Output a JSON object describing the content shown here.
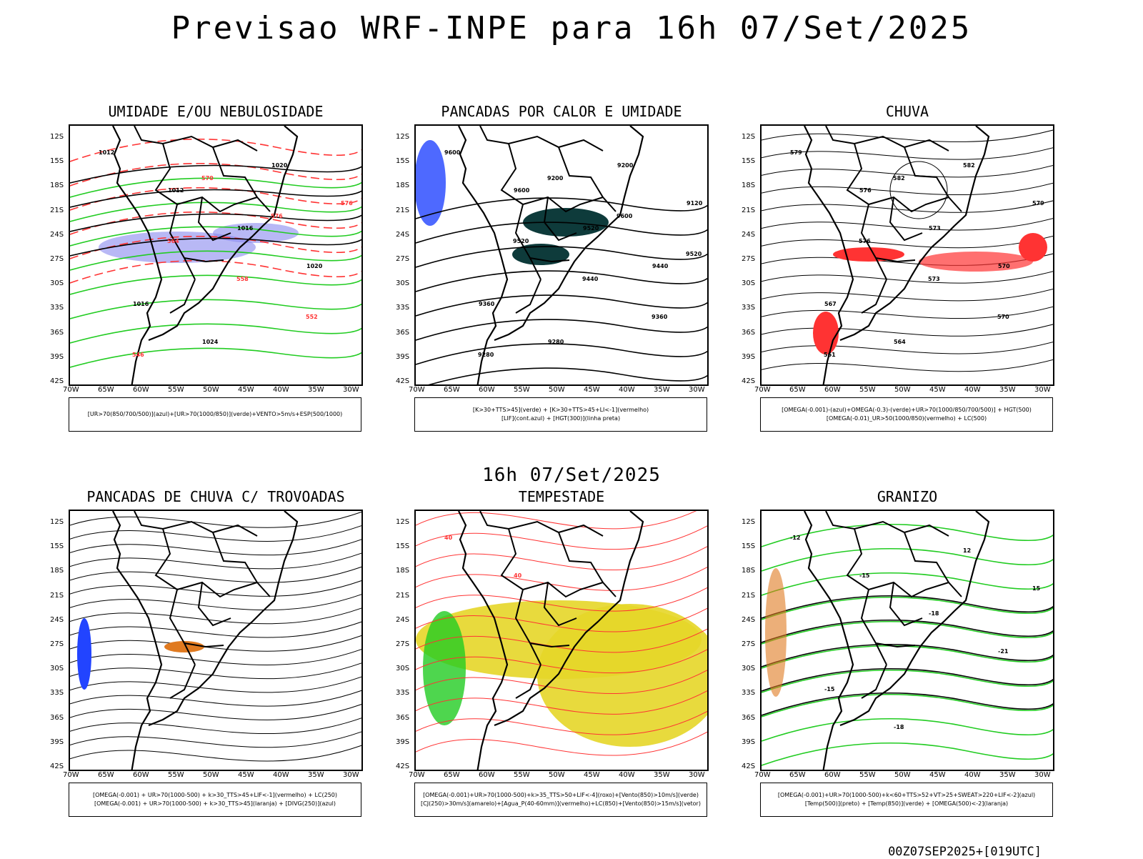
{
  "main_title": "Previsao WRF-INPE  para 16h 07/Set/2025",
  "mid_title": "16h 07/Set/2025",
  "footer_stamp": "00Z07SEP2025+[019UTC]",
  "lat_labels": [
    "12S",
    "15S",
    "18S",
    "21S",
    "24S",
    "27S",
    "30S",
    "33S",
    "36S",
    "39S",
    "42S"
  ],
  "lon_labels": [
    "70W",
    "65W",
    "60W",
    "55W",
    "50W",
    "45W",
    "40W",
    "35W",
    "30W"
  ],
  "colors": {
    "contour_black": "#000000",
    "contour_red": "#ff3333",
    "contour_green": "#22cc22",
    "humidity_blue": "#8888ee",
    "dark_teal": "#0e3b3b",
    "yellow_storm": "#e6d628",
    "orange_thunder": "#e07a20",
    "blue_cells": "#2244ff"
  },
  "panels": [
    {
      "title": "UMIDADE E/OU NEBULOSIDADE",
      "legend": [
        "[UR>70(850/700/500)](azul)+[UR>70(1000/850)](verde)+VENTO>5m/s+ESP(500/1000)"
      ],
      "contour_labels": [
        "1012",
        "1012",
        "1016",
        "1020",
        "1016",
        "1024",
        "1020",
        "576",
        "564",
        "558",
        "552",
        "546",
        "570",
        "576"
      ]
    },
    {
      "title": "PANCADAS POR CALOR E UMIDADE",
      "legend": [
        "[K>30+TTS>45](verde) + [K>30+TTS>45+LI<-1](vermelho)",
        "[LIF](cont.azul) + [HGT(300)](linha preta)"
      ],
      "contour_labels": [
        "9600",
        "9600",
        "9520",
        "9440",
        "9360",
        "9280",
        "9200",
        "9120",
        "9520",
        "9440",
        "9360",
        "9280",
        "9200",
        "9600",
        "9520"
      ]
    },
    {
      "title": "CHUVA",
      "legend": [
        "[OMEGA(-0.001)-(azul)+OMEGA(-0.3)-(verde)+UR>70(1000/850/700/500)] + HGT(500)",
        "[OMEGA(-0.01)_UR>50(1000/850)(vermelho) + LC(500)"
      ],
      "contour_labels": [
        "579",
        "576",
        "573",
        "570",
        "567",
        "564",
        "582",
        "579",
        "576",
        "573",
        "570",
        "561",
        "582"
      ]
    },
    {
      "title": "PANCADAS DE CHUVA C/ TROVOADAS",
      "legend": [
        "[OMEGA(-0.001) + UR>70(1000-500) + k>30_TTS>45+LIF<-1](vermelho) + LC(250)",
        "[OMEGA(-0.001) + UR>70(1000-500) + k>30_TTS>45](laranja) + [DIVG(250)](azul)"
      ],
      "contour_labels": []
    },
    {
      "title": "TEMPESTADE",
      "legend": [
        "[OMEGA(-0.001)+UR>70(1000-500)+k>35_TTS>50+LIF<-4](roxo)+[Vento(850)>10m/s](verde)",
        "[CJ(250)>30m/s](amarelo)+[Agua_P(40-60mm)](vermelho)+LC(850)+[Vento(850)>15m/s](vetor)"
      ],
      "contour_labels": [
        "40",
        "40"
      ]
    },
    {
      "title": "GRANIZO",
      "legend": [
        "[OMEGA(-0.001)+UR>70(1000-500)+k<60+TTS>52+VT>25+SWEAT>220+LIF<-2](azul)",
        "[Temp(500)](preto) + [Temp(850)](verde) + [OMEGA(500)<-2](laranja)"
      ],
      "contour_labels": [
        "-12",
        "-15",
        "-18",
        "-21",
        "-15",
        "-18",
        "12",
        "15"
      ]
    }
  ]
}
